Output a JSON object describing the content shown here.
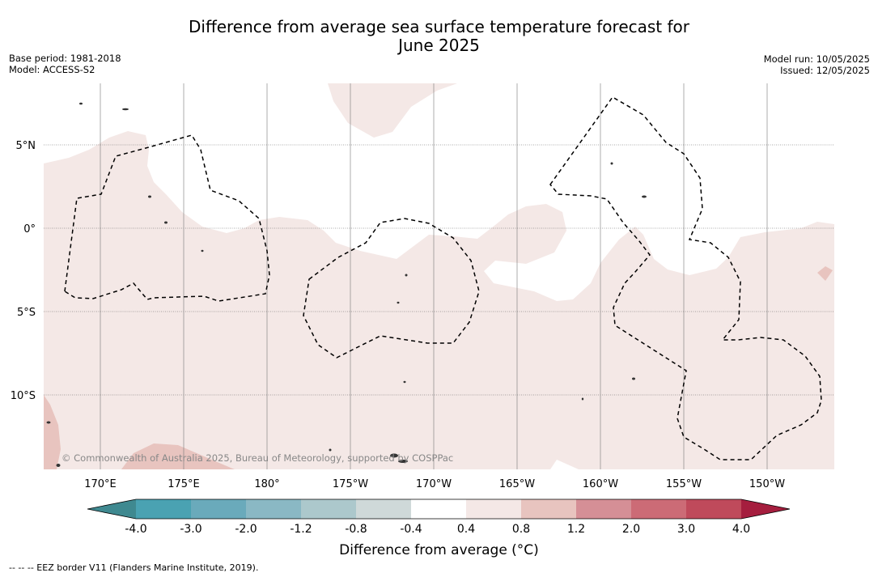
{
  "title": {
    "line1": "Difference from average sea surface temperature forecast for",
    "line2": "June 2025"
  },
  "meta_left": {
    "base_period": "Base period: 1981-2018",
    "model": "Model: ACCESS-S2"
  },
  "meta_right": {
    "model_run": "Model run: 10/05/2025",
    "issued": "Issued: 12/05/2025"
  },
  "map": {
    "lat_labels": [
      "5°N",
      "0°",
      "5°S",
      "10°S"
    ],
    "lon_labels": [
      "170°E",
      "175°E",
      "180°",
      "175°W",
      "170°W",
      "165°W",
      "160°W",
      "155°W",
      "150°W"
    ],
    "copyright": "© Commonwealth of Australia 2025, Bureau of Meteorology, supported by COSPPac",
    "fill_colors": {
      "anomaly_0_4_to_0_8": "#f4e8e6",
      "anomaly_0_8_to_1_2": "#e8c4bf",
      "land": "#555555"
    }
  },
  "colorbar": {
    "label": "Difference from average (°C)",
    "ticks": [
      "-4.0",
      "-3.0",
      "-2.0",
      "-1.2",
      "-0.8",
      "-0.4",
      "0.4",
      "0.8",
      "1.2",
      "2.0",
      "3.0",
      "4.0"
    ],
    "colors": [
      "#3f8990",
      "#4aa2b2",
      "#6aaabb",
      "#8ab8c4",
      "#acc8cc",
      "#cfd9d9",
      "#ffffff",
      "#f4e8e6",
      "#e8c4bf",
      "#d58f96",
      "#cc6b76",
      "#bf4a5b",
      "#a51e3e"
    ]
  },
  "legend": {
    "eez": "--  --  -- EEZ border V11 (Flanders Marine Institute, 2019)."
  }
}
